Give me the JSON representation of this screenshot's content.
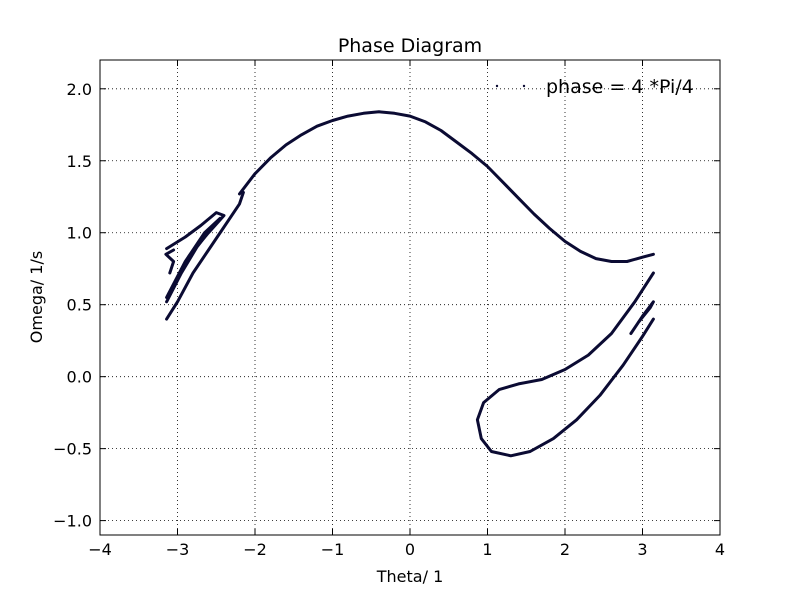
{
  "chart_data": {
    "type": "scatter",
    "title": "Phase Diagram",
    "xlabel": "Theta/ 1",
    "ylabel": "Omega/ 1/s",
    "xlim": [
      -4,
      4
    ],
    "ylim": [
      -1.1,
      2.2
    ],
    "xticks": [
      -4,
      -3,
      -2,
      -1,
      0,
      1,
      2,
      3,
      4
    ],
    "xtick_labels": [
      "−4",
      "−3",
      "−2",
      "−1",
      "0",
      "1",
      "2",
      "3",
      "4"
    ],
    "yticks": [
      -1.0,
      -0.5,
      0.0,
      0.5,
      1.0,
      1.5,
      2.0
    ],
    "ytick_labels": [
      "−1.0",
      "−0.5",
      "0.0",
      "0.5",
      "1.0",
      "1.5",
      "2.0"
    ],
    "grid": true,
    "legend": {
      "placement": "top-right",
      "entries": [
        "phase = 4 *Pi/4"
      ]
    },
    "series": [
      {
        "name": "phase = 4 *Pi/4",
        "color": "#0b0b33",
        "segments": [
          [
            [
              -2.2,
              1.27
            ],
            [
              -2.0,
              1.41
            ],
            [
              -1.8,
              1.52
            ],
            [
              -1.6,
              1.61
            ],
            [
              -1.4,
              1.68
            ],
            [
              -1.2,
              1.74
            ],
            [
              -1.0,
              1.78
            ],
            [
              -0.8,
              1.81
            ],
            [
              -0.6,
              1.83
            ],
            [
              -0.4,
              1.84
            ],
            [
              -0.2,
              1.83
            ],
            [
              0.0,
              1.81
            ],
            [
              0.2,
              1.77
            ],
            [
              0.4,
              1.71
            ],
            [
              0.6,
              1.63
            ],
            [
              0.8,
              1.55
            ],
            [
              1.0,
              1.46
            ],
            [
              1.2,
              1.35
            ],
            [
              1.4,
              1.24
            ],
            [
              1.6,
              1.13
            ],
            [
              1.8,
              1.03
            ],
            [
              2.0,
              0.94
            ],
            [
              2.2,
              0.87
            ],
            [
              2.4,
              0.82
            ],
            [
              2.6,
              0.8
            ],
            [
              2.8,
              0.8
            ],
            [
              3.0,
              0.83
            ],
            [
              3.14,
              0.85
            ]
          ],
          [
            [
              -3.14,
              0.4
            ],
            [
              -3.0,
              0.52
            ],
            [
              -2.8,
              0.72
            ],
            [
              -2.6,
              0.88
            ],
            [
              -2.4,
              1.04
            ],
            [
              -2.2,
              1.2
            ],
            [
              -2.15,
              1.28
            ]
          ],
          [
            [
              -3.14,
              0.52
            ],
            [
              -2.95,
              0.72
            ],
            [
              -2.75,
              0.9
            ],
            [
              -2.55,
              1.04
            ],
            [
              -2.45,
              1.1
            ],
            [
              -2.65,
              1.0
            ],
            [
              -2.9,
              0.8
            ],
            [
              -3.14,
              0.55
            ]
          ],
          [
            [
              -3.14,
              0.89
            ],
            [
              -2.9,
              0.97
            ],
            [
              -2.7,
              1.05
            ],
            [
              -2.5,
              1.14
            ],
            [
              -2.4,
              1.12
            ],
            [
              -2.6,
              1.0
            ],
            [
              -2.85,
              0.84
            ]
          ],
          [
            [
              -3.1,
              0.72
            ],
            [
              -3.05,
              0.8
            ],
            [
              -3.15,
              0.85
            ],
            [
              -3.05,
              0.88
            ]
          ],
          [
            [
              3.14,
              0.72
            ],
            [
              2.9,
              0.52
            ],
            [
              2.6,
              0.3
            ],
            [
              2.3,
              0.15
            ],
            [
              2.0,
              0.05
            ],
            [
              1.7,
              -0.02
            ],
            [
              1.4,
              -0.05
            ],
            [
              1.15,
              -0.09
            ],
            [
              0.95,
              -0.18
            ],
            [
              0.87,
              -0.3
            ],
            [
              0.92,
              -0.43
            ],
            [
              1.05,
              -0.52
            ],
            [
              1.3,
              -0.55
            ],
            [
              1.55,
              -0.52
            ],
            [
              1.85,
              -0.43
            ],
            [
              2.15,
              -0.3
            ],
            [
              2.45,
              -0.13
            ],
            [
              2.75,
              0.08
            ],
            [
              3.0,
              0.28
            ],
            [
              3.14,
              0.4
            ]
          ],
          [
            [
              2.85,
              0.3
            ],
            [
              3.0,
              0.42
            ],
            [
              3.14,
              0.52
            ],
            [
              3.1,
              0.48
            ],
            [
              2.95,
              0.38
            ]
          ]
        ]
      }
    ]
  }
}
